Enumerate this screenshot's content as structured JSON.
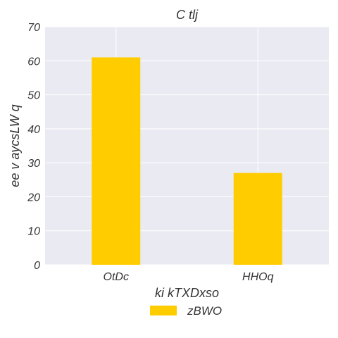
{
  "chart_data": {
    "type": "bar",
    "title": "C tlj",
    "xlabel": "ki  kTXDxso",
    "ylabel": "ee v aycsLW q",
    "categories": [
      "OtDc",
      "HHOq"
    ],
    "series": [
      {
        "name": "zBWO",
        "values": [
          61,
          27
        ],
        "color": "#FFCC00"
      }
    ],
    "ylim": [
      0,
      70
    ],
    "yticks": [
      0,
      10,
      20,
      30,
      40,
      50,
      60,
      70
    ],
    "grid": true,
    "legend_position": "bottom-center",
    "background_color": "#EAEAF2",
    "grid_color": "#FFFFFF"
  }
}
